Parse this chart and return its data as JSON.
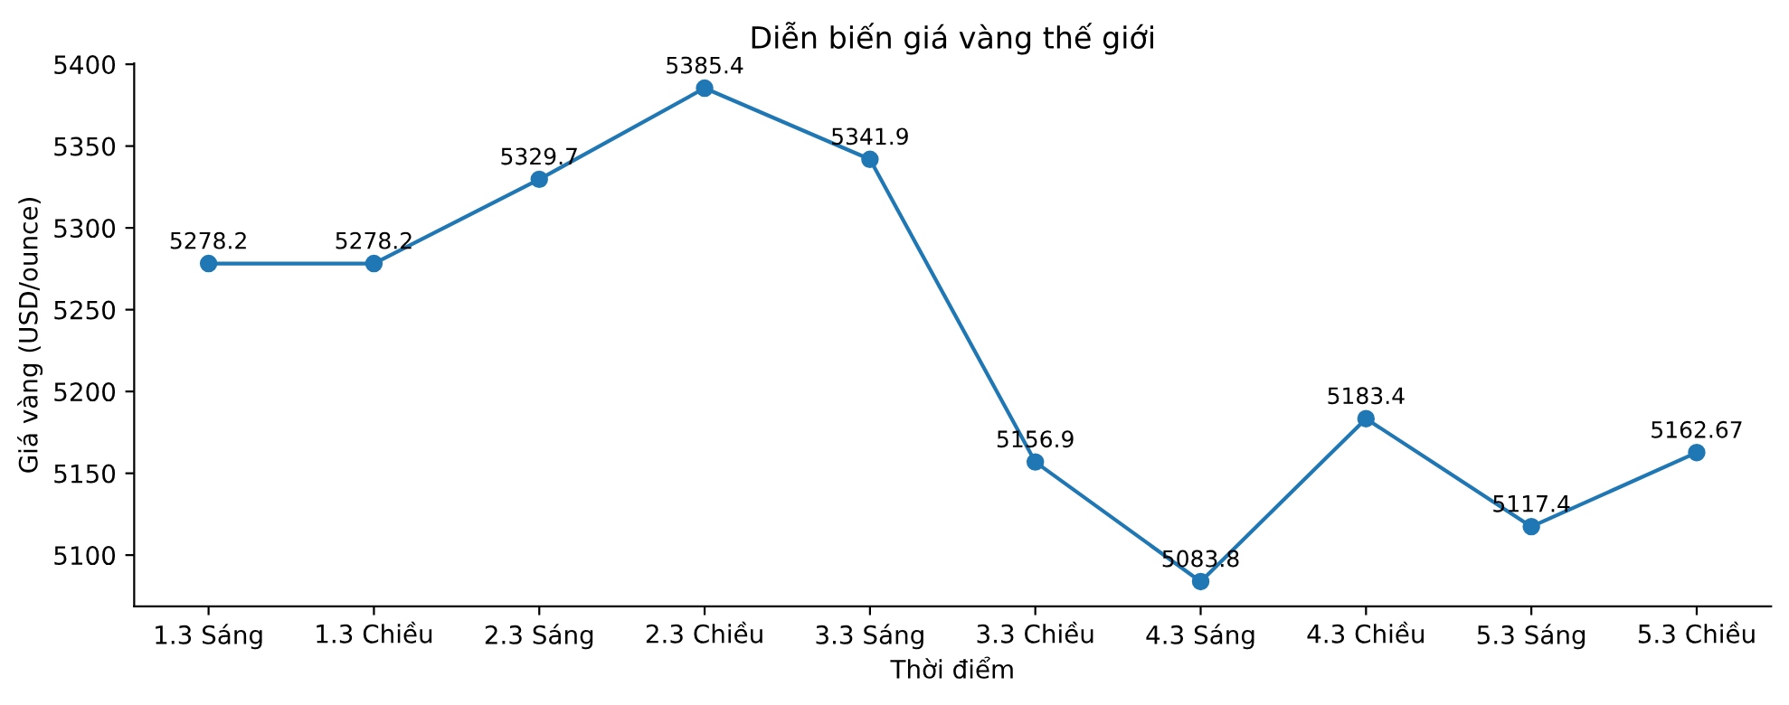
{
  "chart_data": {
    "type": "line",
    "title": "Diễn biến giá vàng thế giới",
    "xlabel": "Thời điểm",
    "ylabel": "Giá vàng (USD/ounce)",
    "categories": [
      "1.3 Sáng",
      "1.3 Chiều",
      "2.3 Sáng",
      "2.3 Chiều",
      "3.3 Sáng",
      "3.3 Chiều",
      "4.3 Sáng",
      "4.3 Chiều",
      "5.3 Sáng",
      "5.3 Chiều"
    ],
    "series": [
      {
        "color": "#1f77b4",
        "values": [
          5278.2,
          5278.2,
          5329.7,
          5385.4,
          5341.9,
          5156.9,
          5083.8,
          5183.4,
          5117.4,
          5162.67
        ]
      }
    ],
    "ylim": [
      5068.7,
      5400.5
    ],
    "yticks": [
      5100,
      5150,
      5200,
      5250,
      5300,
      5350,
      5400
    ],
    "marker": "circle",
    "line_style": "solid",
    "data_labels": true,
    "grid": false
  }
}
